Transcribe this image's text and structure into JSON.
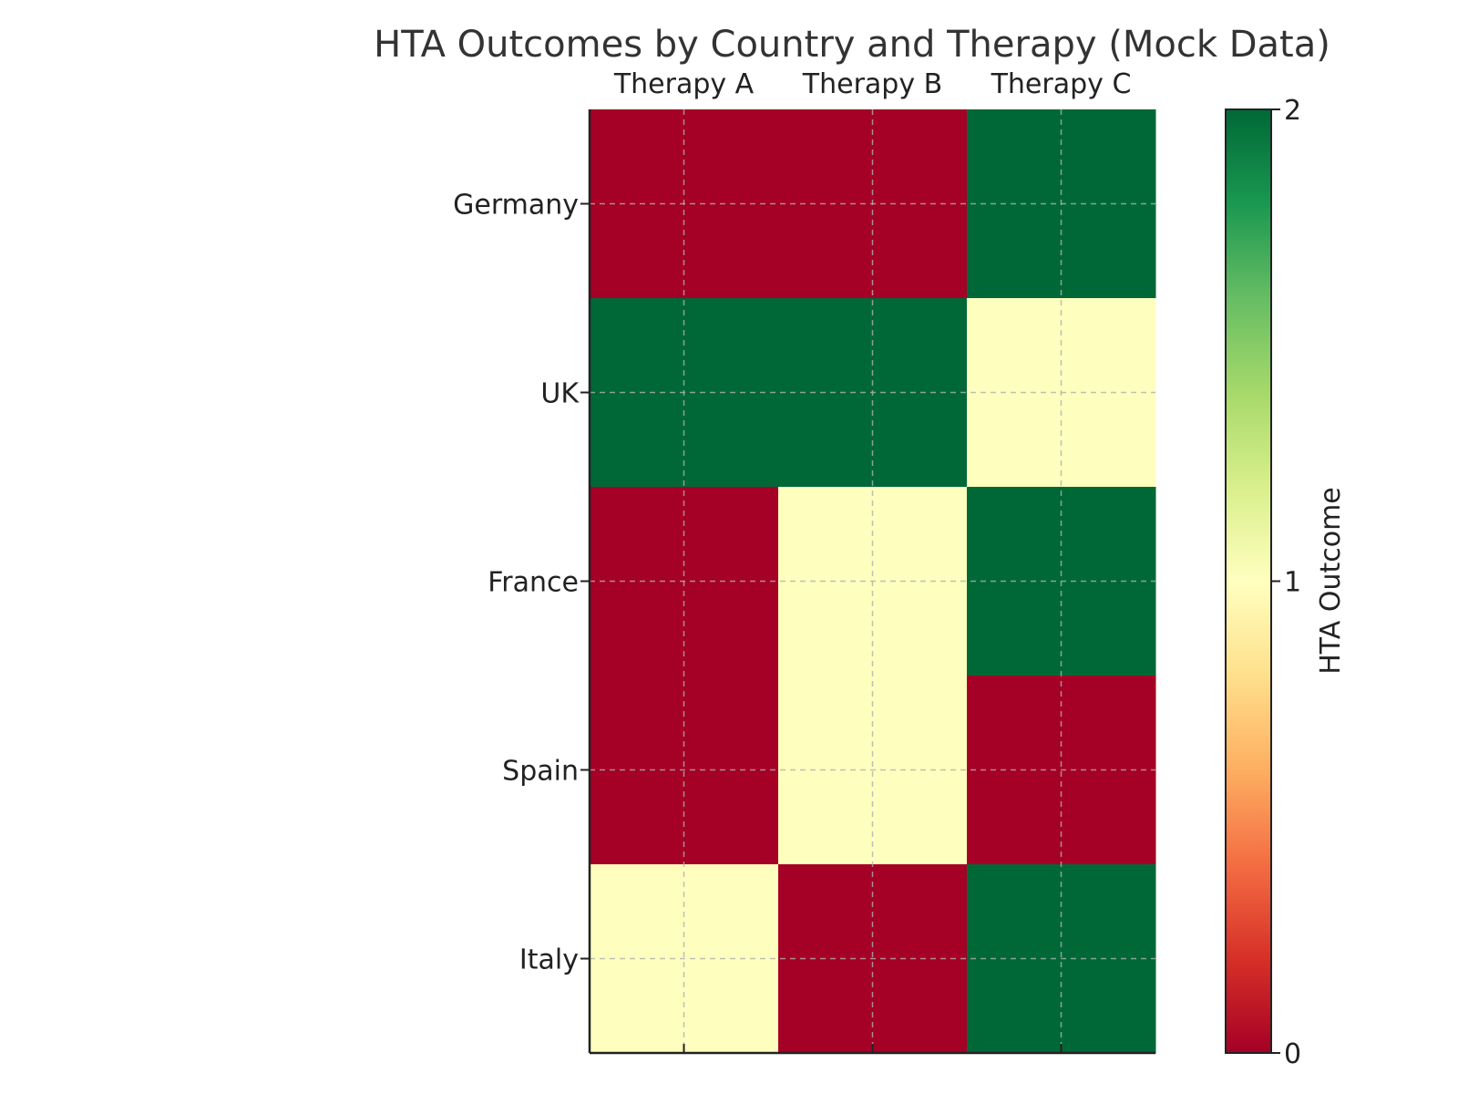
{
  "chart_data": {
    "type": "heatmap",
    "title": "HTA Outcomes by Country and Therapy (Mock Data)",
    "x_categories": [
      "Therapy A",
      "Therapy B",
      "Therapy C"
    ],
    "y_categories": [
      "Germany",
      "UK",
      "France",
      "Spain",
      "Italy"
    ],
    "values": [
      [
        0,
        0,
        2
      ],
      [
        2,
        2,
        1
      ],
      [
        0,
        1,
        2
      ],
      [
        0,
        1,
        0
      ],
      [
        1,
        0,
        2
      ]
    ],
    "colorbar": {
      "label": "HTA Outcome",
      "range": [
        0,
        2
      ],
      "ticks": [
        0,
        1,
        2
      ],
      "colormap": "RdYlGn"
    },
    "x_axis_position": "top",
    "grid": true,
    "colors": {
      "low": "#a50026",
      "mid": "#feffbe",
      "high": "#006837"
    }
  }
}
